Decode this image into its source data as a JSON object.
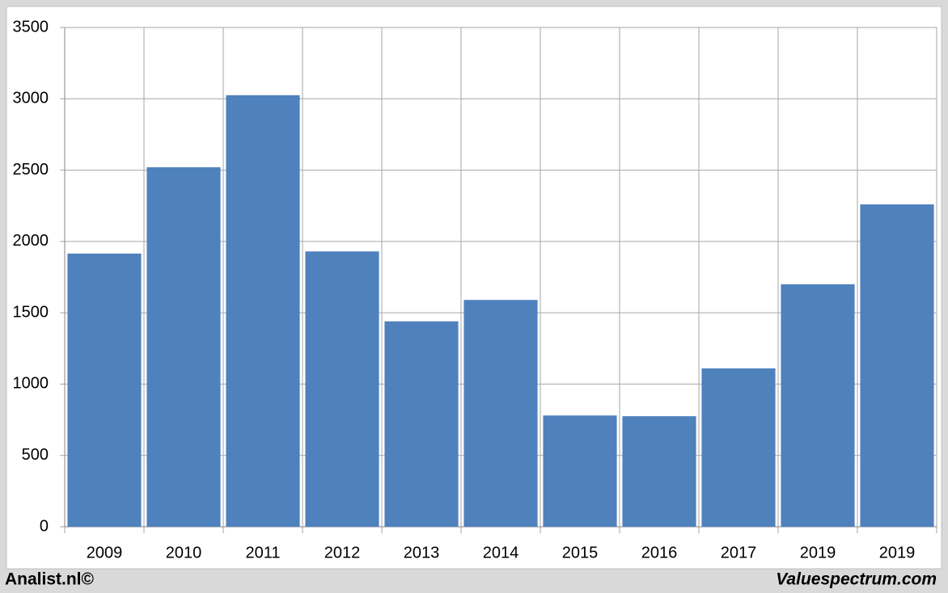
{
  "chart_data": {
    "type": "bar",
    "categories": [
      "2009",
      "2010",
      "2011",
      "2012",
      "2013",
      "2014",
      "2015",
      "2016",
      "2017",
      "2019",
      "2019"
    ],
    "values": [
      1915,
      2520,
      3025,
      1930,
      1440,
      1590,
      780,
      775,
      1110,
      1700,
      2260
    ],
    "color": "#4f81bd",
    "ylim": [
      0,
      3500
    ],
    "yticks": [
      0,
      500,
      1000,
      1500,
      2000,
      2500,
      3000,
      3500
    ],
    "grid": true
  },
  "footer": {
    "left": "Analist.nl©",
    "right": "Valuespectrum.com"
  }
}
